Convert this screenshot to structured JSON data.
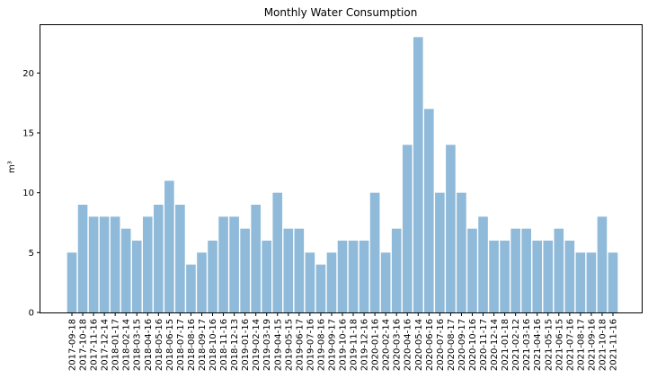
{
  "chart_data": {
    "type": "bar",
    "title": "Monthly Water Consumption",
    "xlabel": "",
    "ylabel": "m³",
    "ylim": [
      0,
      24
    ],
    "yticks": [
      0,
      5,
      10,
      15,
      20
    ],
    "grid": false,
    "bar_color": "#8fbad9",
    "categories": [
      "2017-09-18",
      "2017-10-18",
      "2017-11-16",
      "2017-12-14",
      "2018-01-17",
      "2018-02-14",
      "2018-03-15",
      "2018-04-16",
      "2018-05-16",
      "2018-06-15",
      "2018-07-17",
      "2018-08-16",
      "2018-09-17",
      "2018-10-16",
      "2018-11-16",
      "2018-12-13",
      "2019-01-16",
      "2019-02-14",
      "2019-03-19",
      "2019-04-15",
      "2019-05-15",
      "2019-06-17",
      "2019-07-16",
      "2019-08-16",
      "2019-09-17",
      "2019-10-16",
      "2019-11-18",
      "2019-12-16",
      "2020-01-16",
      "2020-02-14",
      "2020-03-16",
      "2020-04-16",
      "2020-05-14",
      "2020-06-16",
      "2020-07-16",
      "2020-08-17",
      "2020-09-17",
      "2020-10-16",
      "2020-11-17",
      "2020-12-14",
      "2021-01-18",
      "2021-02-12",
      "2021-03-16",
      "2021-04-16",
      "2021-05-15",
      "2021-06-15",
      "2021-07-16",
      "2021-08-17",
      "2021-09-16",
      "2021-10-18",
      "2021-11-16"
    ],
    "visible_tick_labels": [
      "2017-09-18",
      "2017-10-18",
      "2017-11-16",
      "2017-12-14",
      "2018-01-17",
      "2018-02-14",
      "2018-03-15",
      "2018-04-16",
      "2018-05-16",
      "2018-06-15",
      "2018-07-17",
      "2018-08-16",
      "2018-09-17",
      "2018-10-16",
      "2018-11-16",
      "2018-12-13",
      "2019-01-16",
      "2019-02-14",
      "2019-03-19",
      "2019-04-15",
      "2019-05-15",
      "2019-06-17",
      "2019-07-16",
      "2019-08-16",
      "2019-09-17",
      "2019-10-16",
      "2019-11-18",
      "2019-12-16",
      "2020-01-16",
      "2020-02-14",
      "2020-03-16",
      "2020-04-16",
      "2020-05-14",
      "2020-06-16",
      "2020-07-16",
      "2020-08-17",
      "2020-09-17",
      "2020-10-16",
      "2020-11-17",
      "2020-12-14",
      "2021-01-18",
      "2021-02-12",
      "2021-03-16",
      "2021-04-16",
      "2021-05-15",
      "2021-06-15",
      "2021-07-16",
      "2021-08-17",
      "2021-09-16",
      "2021-10-18",
      "2021-11-16"
    ],
    "values": [
      5,
      9,
      8,
      8,
      8,
      7,
      6,
      8,
      9,
      11,
      9,
      4,
      5,
      6,
      8,
      8,
      7,
      9,
      6,
      10,
      7,
      7,
      5,
      4,
      5,
      6,
      6,
      6,
      10,
      5,
      7,
      14,
      23,
      17,
      10,
      14,
      10,
      7,
      8,
      6,
      6,
      7,
      7,
      6,
      6,
      7,
      6,
      5,
      5,
      8,
      5
    ]
  }
}
